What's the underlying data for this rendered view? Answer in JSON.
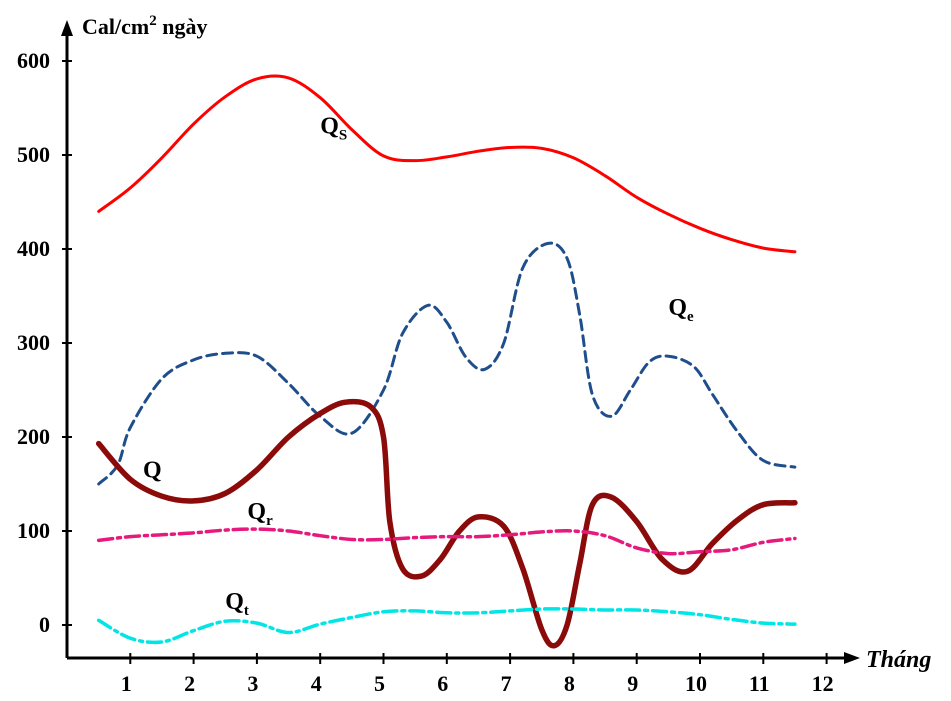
{
  "chart_data": {
    "type": "line",
    "ylabel": "Cal/cm",
    "ylabel_sup": "2",
    "ylabel_suffix": " ngày",
    "xlabel": "Tháng",
    "xlim": [
      0,
      12
    ],
    "ylim": [
      -30,
      600
    ],
    "x_ticks": [
      "1",
      "2",
      "3",
      "4",
      "5",
      "6",
      "7",
      "8",
      "9",
      "10",
      "11",
      "12"
    ],
    "y_ticks": [
      "0",
      "100",
      "200",
      "300",
      "400",
      "500",
      "600"
    ],
    "grid": false,
    "series": [
      {
        "name": "Q",
        "sub": "S",
        "color": "#ff0000",
        "dash": "solid",
        "x": [
          0.5,
          1.0,
          1.5,
          2.0,
          2.5,
          3.0,
          3.5,
          4.0,
          4.5,
          5.0,
          5.5,
          6.0,
          6.5,
          7.0,
          7.5,
          8.0,
          8.5,
          9.0,
          9.5,
          10.0,
          10.5,
          11.0,
          11.5
        ],
        "y": [
          440,
          465,
          497,
          533,
          562,
          581,
          582,
          561,
          527,
          499,
          494,
          498,
          504,
          508,
          507,
          497,
          478,
          455,
          437,
          422,
          410,
          401,
          397
        ]
      },
      {
        "name": "Q",
        "sub": "e",
        "color": "#1f4e8c",
        "dash": "dashed",
        "x": [
          0.5,
          0.8,
          1.0,
          1.5,
          2.0,
          2.5,
          3.0,
          3.5,
          4.0,
          4.5,
          5.0,
          5.3,
          5.7,
          6.0,
          6.3,
          6.6,
          6.9,
          7.2,
          7.6,
          7.9,
          8.1,
          8.3,
          8.6,
          8.9,
          9.2,
          9.5,
          9.9,
          10.2,
          10.6,
          11.0,
          11.5
        ],
        "y": [
          150,
          170,
          210,
          262,
          282,
          289,
          286,
          257,
          222,
          204,
          250,
          310,
          340,
          322,
          285,
          272,
          300,
          380,
          406,
          390,
          330,
          245,
          222,
          250,
          280,
          286,
          275,
          245,
          205,
          175,
          168
        ]
      },
      {
        "name": "Q",
        "sub": "",
        "color": "#8b0a0a",
        "dash": "thick",
        "x": [
          0.5,
          1.0,
          1.5,
          2.0,
          2.5,
          3.0,
          3.5,
          4.0,
          4.4,
          4.8,
          5.0,
          5.1,
          5.3,
          5.6,
          5.9,
          6.2,
          6.5,
          6.9,
          7.2,
          7.5,
          7.7,
          7.9,
          8.1,
          8.3,
          8.6,
          9.0,
          9.4,
          9.8,
          10.2,
          10.6,
          11.0,
          11.5
        ],
        "y": [
          193,
          155,
          137,
          132,
          140,
          165,
          200,
          225,
          237,
          232,
          200,
          110,
          60,
          52,
          70,
          100,
          115,
          105,
          60,
          -5,
          -22,
          0,
          65,
          128,
          136,
          110,
          70,
          57,
          87,
          112,
          128,
          130
        ]
      },
      {
        "name": "Q",
        "sub": "r",
        "color": "#e6197d",
        "dash": "dashdot",
        "x": [
          0.5,
          1.0,
          1.5,
          2.0,
          2.5,
          3.0,
          3.5,
          4.0,
          4.5,
          5.0,
          5.5,
          6.0,
          6.5,
          7.0,
          7.5,
          8.0,
          8.5,
          9.0,
          9.5,
          10.0,
          10.5,
          11.0,
          11.5
        ],
        "y": [
          90,
          94,
          96,
          98,
          101,
          102,
          100,
          95,
          91,
          91,
          93,
          94,
          94,
          96,
          99,
          100,
          95,
          82,
          76,
          78,
          80,
          88,
          92
        ]
      },
      {
        "name": "Q",
        "sub": "t",
        "color": "#00e6e6",
        "dash": "dashdot",
        "x": [
          0.5,
          1.0,
          1.5,
          2.0,
          2.5,
          3.0,
          3.5,
          4.0,
          4.5,
          5.0,
          5.5,
          6.0,
          6.5,
          7.0,
          7.5,
          8.0,
          8.5,
          9.0,
          9.5,
          10.0,
          10.5,
          11.0,
          11.5
        ],
        "y": [
          5,
          -14,
          -18,
          -6,
          4,
          2,
          -8,
          1,
          8,
          14,
          15,
          13,
          13,
          15,
          17,
          17,
          16,
          16,
          14,
          11,
          6,
          2,
          1
        ]
      }
    ],
    "labels": [
      {
        "series": 0,
        "x": 4.0,
        "y": 523
      },
      {
        "series": 1,
        "x": 9.5,
        "y": 330
      },
      {
        "series": 2,
        "x": 1.2,
        "y": 157
      },
      {
        "series": 3,
        "x": 2.85,
        "y": 113
      },
      {
        "series": 4,
        "x": 2.5,
        "y": 17
      }
    ]
  }
}
